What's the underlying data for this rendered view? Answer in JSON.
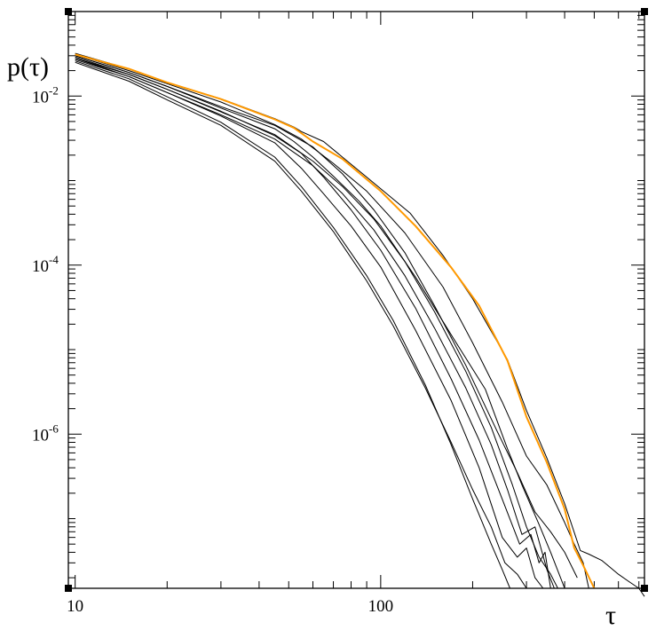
{
  "chart_data": {
    "type": "line",
    "title": "",
    "xlabel": "τ",
    "ylabel": "p(τ)",
    "x_scale": "log",
    "y_scale": "log",
    "xlim": [
      9.5,
      730
    ],
    "ylim": [
      1.5e-08,
      0.1
    ],
    "grid": false,
    "legend": "none",
    "x_ticks": [
      {
        "value": 10,
        "label": "10"
      },
      {
        "value": 100,
        "label": "100"
      }
    ],
    "y_ticks": [
      {
        "value": 0.01,
        "base": "10",
        "exp": "-2"
      },
      {
        "value": 0.0001,
        "base": "10",
        "exp": "-4"
      },
      {
        "value": 1e-06,
        "base": "10",
        "exp": "-6"
      }
    ],
    "colors": {
      "black_series": "#000000",
      "highlight_series": "#ff9900"
    },
    "series": [
      {
        "color": "#000000",
        "x": [
          10,
          15,
          20,
          30,
          45,
          52,
          60,
          70,
          85,
          100,
          130,
          170,
          220,
          260,
          290,
          330,
          360,
          400
        ],
        "y": [
          0.03,
          0.019,
          0.013,
          0.0072,
          0.0041,
          0.0029,
          0.0019,
          0.00113,
          0.00057,
          0.00029,
          7.2e-05,
          1.5e-05,
          3.4e-06,
          6.7e-07,
          2.5e-07,
          8.5e-08,
          4e-08,
          1.5e-08
        ]
      },
      {
        "color": "#000000",
        "x": [
          10,
          15,
          20,
          30,
          45,
          55,
          65,
          80,
          100,
          130,
          170,
          210,
          250,
          285,
          310,
          330,
          345,
          360
        ],
        "y": [
          0.028,
          0.018,
          0.012,
          0.0066,
          0.0034,
          0.0021,
          0.0011,
          0.00045,
          0.00015,
          3.1e-05,
          4.5e-06,
          8.5e-07,
          1.7e-07,
          5e-08,
          6.5e-08,
          3e-08,
          4e-08,
          1.5e-08
        ]
      },
      {
        "color": "#000000",
        "x": [
          10,
          15,
          20,
          30,
          45,
          55,
          65,
          80,
          100,
          130,
          170,
          210,
          250,
          280,
          300,
          320,
          340
        ],
        "y": [
          0.027,
          0.017,
          0.011,
          0.0058,
          0.0028,
          0.0014,
          0.0007,
          0.00029,
          9.5e-05,
          1.7e-05,
          2.5e-06,
          4e-07,
          6e-08,
          3.5e-08,
          4.5e-08,
          2e-08,
          1.5e-08
        ]
      },
      {
        "color": "#000000",
        "x": [
          10,
          15,
          20,
          30,
          45,
          55,
          70,
          90,
          110,
          140,
          170,
          200,
          230,
          250,
          265
        ],
        "y": [
          0.026,
          0.016,
          0.0098,
          0.0049,
          0.0019,
          0.00085,
          0.00028,
          7.5e-05,
          2.2e-05,
          3.8e-06,
          7.5e-07,
          1.7e-07,
          5e-08,
          2.5e-08,
          1.5e-08
        ]
      },
      {
        "color": "#000000",
        "x": [
          10,
          15,
          20,
          30,
          45,
          55,
          70,
          90,
          110,
          140,
          170,
          200,
          230,
          255,
          280,
          300
        ],
        "y": [
          0.025,
          0.015,
          0.009,
          0.0045,
          0.0017,
          0.00075,
          0.00025,
          6.5e-05,
          1.9e-05,
          3.5e-06,
          8e-07,
          2.2e-07,
          8e-08,
          3e-08,
          2.2e-08,
          1.5e-08
        ]
      },
      {
        "color": "#000000",
        "x": [
          10,
          15,
          20,
          30,
          45,
          60,
          75,
          95,
          120,
          150,
          190,
          230,
          270,
          300,
          330,
          360,
          380
        ],
        "y": [
          0.029,
          0.018,
          0.012,
          0.0065,
          0.0035,
          0.0017,
          0.00085,
          0.00035,
          0.00011,
          2.8e-05,
          5.5e-06,
          1.2e-06,
          2.5e-07,
          8e-08,
          3.5e-08,
          2.2e-08,
          1.5e-08
        ]
      },
      {
        "color": "#000000",
        "x": [
          10,
          15,
          20,
          30,
          45,
          60,
          75,
          95,
          120,
          150,
          190,
          230,
          260,
          290,
          320,
          350,
          370
        ],
        "y": [
          0.028,
          0.017,
          0.011,
          0.006,
          0.0031,
          0.0015,
          0.0007,
          0.00026,
          7.5e-05,
          1.8e-05,
          3.5e-06,
          7.5e-07,
          2.2e-07,
          6.5e-08,
          8e-08,
          2.5e-08,
          1.5e-08
        ]
      },
      {
        "color": "#000000",
        "x": [
          10,
          15,
          20,
          30,
          45,
          60,
          75,
          95,
          120,
          150,
          190,
          240,
          280,
          320,
          360,
          400,
          440
        ],
        "y": [
          0.03,
          0.019,
          0.013,
          0.0075,
          0.0045,
          0.0025,
          0.0012,
          0.00045,
          0.00014,
          3.3e-05,
          6.5e-06,
          1.1e-06,
          3.5e-07,
          1.2e-07,
          7e-08,
          4e-08,
          2e-08
        ]
      },
      {
        "color": "#000000",
        "x": [
          10,
          15,
          20,
          30,
          45,
          55,
          70,
          90,
          120,
          160,
          200,
          250,
          300,
          350,
          400,
          430,
          460,
          480
        ],
        "y": [
          0.031,
          0.02,
          0.014,
          0.0085,
          0.0046,
          0.0031,
          0.0016,
          0.00075,
          0.00024,
          5.5e-05,
          1.2e-05,
          2.4e-06,
          5.5e-07,
          2.5e-07,
          9e-08,
          5e-08,
          3e-08,
          1.5e-08
        ]
      },
      {
        "color": "#000000",
        "x": [
          10,
          15,
          20,
          30,
          45,
          52,
          55,
          65,
          90,
          125,
          160,
          200,
          260,
          300,
          350,
          400,
          450,
          480,
          530,
          600,
          650,
          700,
          730
        ],
        "y": [
          0.032,
          0.021,
          0.0145,
          0.0093,
          0.0054,
          0.0043,
          0.0038,
          0.0029,
          0.0011,
          0.00041,
          0.00013,
          4e-05,
          7.6e-06,
          1.9e-06,
          5.2e-07,
          1.5e-07,
          4.2e-08,
          3.8e-08,
          3.2e-08,
          2.2e-08,
          1.8e-08,
          1.5e-08,
          1.2e-08
        ]
      },
      {
        "color": "#ff9900",
        "x": [
          10,
          15,
          20,
          30,
          45,
          52,
          60,
          75,
          100,
          130,
          170,
          210,
          260,
          300,
          350,
          400,
          430,
          460,
          500
        ],
        "y": [
          0.031,
          0.021,
          0.0145,
          0.0092,
          0.0053,
          0.0042,
          0.0029,
          0.0018,
          0.00075,
          0.00029,
          9.4e-05,
          3.3e-05,
          7.4e-06,
          1.6e-06,
          4.6e-07,
          1.3e-07,
          4.5e-08,
          2.8e-08,
          1.5e-08
        ]
      }
    ]
  }
}
